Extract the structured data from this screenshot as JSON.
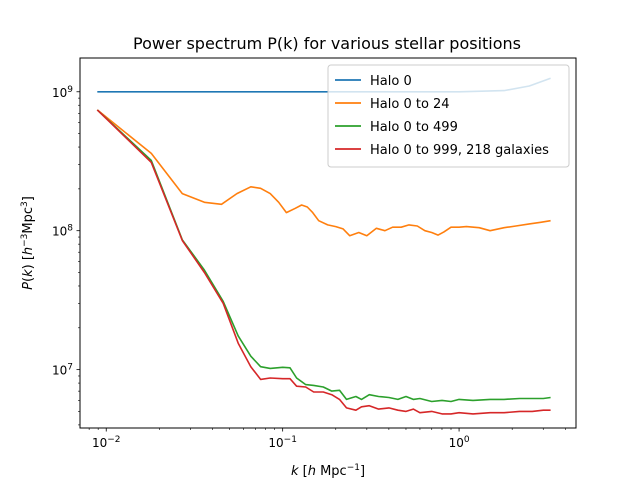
{
  "chart_data": {
    "type": "line",
    "title": "Power spectrum P(k) for various stellar positions",
    "xlabel_parts": [
      {
        "t": "k",
        "style": "italic"
      },
      {
        "t": " [",
        "style": "normal"
      },
      {
        "t": "h",
        "style": "italic"
      },
      {
        "t": " Mpc",
        "style": "normal"
      },
      {
        "t": "−1",
        "style": "sup"
      },
      {
        "t": "]",
        "style": "normal"
      }
    ],
    "ylabel_parts": [
      {
        "t": "P",
        "style": "italic"
      },
      {
        "t": "(",
        "style": "normal"
      },
      {
        "t": "k",
        "style": "italic"
      },
      {
        "t": ") [",
        "style": "normal"
      },
      {
        "t": "h",
        "style": "italic"
      },
      {
        "t": "−3",
        "style": "sup"
      },
      {
        "t": "Mpc",
        "style": "normal"
      },
      {
        "t": "3",
        "style": "sup"
      },
      {
        "t": "]",
        "style": "normal"
      }
    ],
    "xscale": "log",
    "yscale": "log",
    "xlim": [
      0.0071,
      4.6
    ],
    "ylim": [
      3800000,
      1750000000
    ],
    "xticks": [
      {
        "value": 0.01,
        "base": "10",
        "exp": "−2"
      },
      {
        "value": 0.1,
        "base": "10",
        "exp": "−1"
      },
      {
        "value": 1,
        "base": "10",
        "exp": "0"
      }
    ],
    "yticks": [
      {
        "value": 10000000,
        "base": "10",
        "exp": "7"
      },
      {
        "value": 100000000,
        "base": "10",
        "exp": "8"
      },
      {
        "value": 1000000000,
        "base": "10",
        "exp": "9"
      }
    ],
    "legend_position": "top-right",
    "grid": false,
    "series": [
      {
        "name": "Halo 0",
        "color": "#1f77b4",
        "points": [
          [
            0.0089,
            1000000000
          ],
          [
            0.05,
            1000000000
          ],
          [
            0.2,
            1000000000
          ],
          [
            0.5,
            1000000000
          ],
          [
            1.0,
            1000000000
          ],
          [
            1.8,
            1020000000
          ],
          [
            2.5,
            1100000000
          ],
          [
            3.3,
            1250000000
          ]
        ]
      },
      {
        "name": "Halo 0 to 24",
        "color": "#ff7f0e",
        "points": [
          [
            0.0089,
            740000000
          ],
          [
            0.018,
            360000000
          ],
          [
            0.027,
            185000000
          ],
          [
            0.036,
            160000000
          ],
          [
            0.045,
            155000000
          ],
          [
            0.055,
            185000000
          ],
          [
            0.066,
            207000000
          ],
          [
            0.075,
            202000000
          ],
          [
            0.085,
            185000000
          ],
          [
            0.095,
            160000000
          ],
          [
            0.105,
            135000000
          ],
          [
            0.118,
            145000000
          ],
          [
            0.128,
            153000000
          ],
          [
            0.138,
            148000000
          ],
          [
            0.148,
            135000000
          ],
          [
            0.16,
            118000000
          ],
          [
            0.18,
            110000000
          ],
          [
            0.2,
            107000000
          ],
          [
            0.22,
            103000000
          ],
          [
            0.24,
            92000000
          ],
          [
            0.27,
            97000000
          ],
          [
            0.3,
            92000000
          ],
          [
            0.34,
            104000000
          ],
          [
            0.38,
            100000000
          ],
          [
            0.42,
            106000000
          ],
          [
            0.47,
            106000000
          ],
          [
            0.52,
            110000000
          ],
          [
            0.58,
            108000000
          ],
          [
            0.64,
            100000000
          ],
          [
            0.7,
            97000000
          ],
          [
            0.76,
            93000000
          ],
          [
            0.82,
            98000000
          ],
          [
            0.9,
            106000000
          ],
          [
            1.0,
            106000000
          ],
          [
            1.1,
            107000000
          ],
          [
            1.3,
            105000000
          ],
          [
            1.5,
            100000000
          ],
          [
            1.8,
            105000000
          ],
          [
            2.1,
            108000000
          ],
          [
            2.5,
            112000000
          ],
          [
            2.9,
            115000000
          ],
          [
            3.3,
            118000000
          ]
        ]
      },
      {
        "name": "Halo 0 to 499",
        "color": "#2ca02c",
        "points": [
          [
            0.0089,
            740000000
          ],
          [
            0.018,
            320000000
          ],
          [
            0.027,
            86000000
          ],
          [
            0.036,
            52000000
          ],
          [
            0.046,
            31000000
          ],
          [
            0.056,
            17500000
          ],
          [
            0.066,
            12500000
          ],
          [
            0.075,
            10500000
          ],
          [
            0.085,
            10200000
          ],
          [
            0.1,
            10400000
          ],
          [
            0.11,
            10300000
          ],
          [
            0.12,
            8700000
          ],
          [
            0.135,
            7800000
          ],
          [
            0.15,
            7700000
          ],
          [
            0.17,
            7500000
          ],
          [
            0.19,
            7000000
          ],
          [
            0.21,
            7100000
          ],
          [
            0.23,
            6100000
          ],
          [
            0.26,
            6400000
          ],
          [
            0.28,
            6100000
          ],
          [
            0.31,
            6600000
          ],
          [
            0.35,
            6400000
          ],
          [
            0.4,
            6300000
          ],
          [
            0.45,
            6100000
          ],
          [
            0.5,
            6400000
          ],
          [
            0.55,
            6100000
          ],
          [
            0.6,
            6200000
          ],
          [
            0.7,
            5900000
          ],
          [
            0.8,
            6000000
          ],
          [
            0.9,
            5900000
          ],
          [
            1.0,
            6100000
          ],
          [
            1.2,
            6000000
          ],
          [
            1.5,
            6100000
          ],
          [
            1.8,
            6100000
          ],
          [
            2.2,
            6200000
          ],
          [
            2.6,
            6200000
          ],
          [
            3.0,
            6200000
          ],
          [
            3.3,
            6300000
          ]
        ]
      },
      {
        "name": "Halo 0 to 999, 218 galaxies",
        "color": "#d62728",
        "points": [
          [
            0.0089,
            740000000
          ],
          [
            0.018,
            310000000
          ],
          [
            0.027,
            85000000
          ],
          [
            0.036,
            50000000
          ],
          [
            0.046,
            30000000
          ],
          [
            0.056,
            15500000
          ],
          [
            0.066,
            10500000
          ],
          [
            0.075,
            8500000
          ],
          [
            0.085,
            8700000
          ],
          [
            0.1,
            8600000
          ],
          [
            0.11,
            8600000
          ],
          [
            0.12,
            7600000
          ],
          [
            0.135,
            7500000
          ],
          [
            0.15,
            6900000
          ],
          [
            0.17,
            6900000
          ],
          [
            0.19,
            6600000
          ],
          [
            0.21,
            6100000
          ],
          [
            0.23,
            5300000
          ],
          [
            0.26,
            5100000
          ],
          [
            0.28,
            5400000
          ],
          [
            0.31,
            5500000
          ],
          [
            0.35,
            5200000
          ],
          [
            0.4,
            5300000
          ],
          [
            0.45,
            5100000
          ],
          [
            0.5,
            5000000
          ],
          [
            0.55,
            5200000
          ],
          [
            0.6,
            4900000
          ],
          [
            0.7,
            5000000
          ],
          [
            0.8,
            4800000
          ],
          [
            0.9,
            4800000
          ],
          [
            1.0,
            4900000
          ],
          [
            1.2,
            4800000
          ],
          [
            1.5,
            4900000
          ],
          [
            1.8,
            4900000
          ],
          [
            2.2,
            5000000
          ],
          [
            2.6,
            5000000
          ],
          [
            3.0,
            5100000
          ],
          [
            3.3,
            5100000
          ]
        ]
      }
    ]
  }
}
